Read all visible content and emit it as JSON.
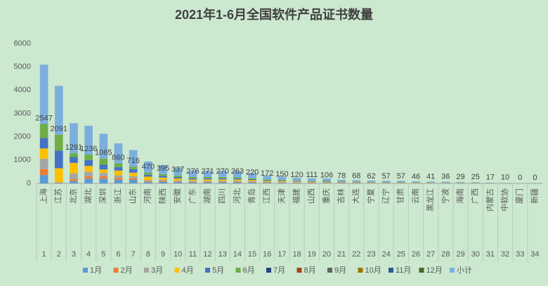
{
  "chart_data": {
    "type": "stacked_bar",
    "title": "2021年1-6月全国软件产品证书数量",
    "categories": [
      "上海",
      "江苏",
      "北京",
      "湖北",
      "深圳",
      "浙江",
      "山东",
      "河南",
      "陕西",
      "安徽",
      "广东",
      "湖南",
      "四川",
      "河北",
      "青岛",
      "江西",
      "天津",
      "福建",
      "山西",
      "重庆",
      "吉林",
      "大连",
      "宁夏",
      "辽宁",
      "甘肃",
      "云南",
      "黑龙江",
      "宁波",
      "海南",
      "广西",
      "内蒙古",
      "中软协",
      "厦门",
      "新疆"
    ],
    "category_numbers": [
      "1",
      "2",
      "3",
      "4",
      "5",
      "6",
      "7",
      "8",
      "9",
      "10",
      "11",
      "12",
      "13",
      "14",
      "15",
      "16",
      "17",
      "18",
      "19",
      "20",
      "21",
      "22",
      "23",
      "24",
      "25",
      "26",
      "27",
      "28",
      "29",
      "30",
      "31",
      "32",
      "33",
      "34"
    ],
    "ylim": [
      0,
      6000
    ],
    "yticks": [
      0,
      1000,
      2000,
      3000,
      4000,
      5000,
      6000
    ],
    "grid": false,
    "legend": "bottom",
    "series": [
      {
        "name": "1月",
        "color": "#5b9bd5",
        "values": [
          360,
          20,
          100,
          200,
          200,
          150,
          150,
          50,
          60,
          50,
          40,
          40,
          40,
          40,
          30,
          20,
          20,
          15,
          15,
          15,
          10,
          10,
          10,
          8,
          8,
          6,
          6,
          5,
          4,
          4,
          2,
          1,
          0,
          0
        ]
      },
      {
        "name": "2月",
        "color": "#ed7d31",
        "values": [
          250,
          10,
          80,
          100,
          100,
          80,
          60,
          30,
          30,
          30,
          20,
          20,
          20,
          20,
          20,
          10,
          10,
          10,
          10,
          10,
          5,
          5,
          5,
          5,
          5,
          4,
          3,
          3,
          2,
          2,
          1,
          1,
          0,
          0
        ]
      },
      {
        "name": "3月",
        "color": "#a5a5a5",
        "values": [
          450,
          20,
          250,
          200,
          150,
          120,
          100,
          60,
          60,
          50,
          50,
          50,
          50,
          50,
          40,
          30,
          30,
          25,
          20,
          20,
          15,
          15,
          10,
          10,
          10,
          8,
          8,
          7,
          6,
          5,
          4,
          2,
          0,
          0
        ]
      },
      {
        "name": "4月",
        "color": "#ffc000",
        "values": [
          440,
          600,
          450,
          250,
          150,
          200,
          150,
          150,
          100,
          80,
          60,
          60,
          60,
          60,
          50,
          40,
          40,
          30,
          30,
          25,
          20,
          15,
          15,
          14,
          14,
          12,
          10,
          9,
          7,
          6,
          4,
          3,
          0,
          0
        ]
      },
      {
        "name": "5月",
        "color": "#4472c4",
        "values": [
          450,
          760,
          250,
          250,
          200,
          150,
          150,
          80,
          70,
          60,
          50,
          50,
          50,
          50,
          40,
          30,
          25,
          20,
          20,
          20,
          15,
          12,
          12,
          10,
          10,
          8,
          7,
          6,
          5,
          4,
          3,
          2,
          0,
          0
        ]
      },
      {
        "name": "6月",
        "color": "#70ad47",
        "values": [
          597,
          681,
          161,
          236,
          265,
          160,
          106,
          100,
          75,
          67,
          56,
          51,
          50,
          43,
          40,
          42,
          25,
          20,
          16,
          16,
          13,
          11,
          10,
          10,
          10,
          8,
          7,
          6,
          5,
          4,
          3,
          1,
          0,
          0
        ]
      },
      {
        "name": "7月",
        "color": "#264478",
        "values": [
          0,
          0,
          0,
          0,
          0,
          0,
          0,
          0,
          0,
          0,
          0,
          0,
          0,
          0,
          0,
          0,
          0,
          0,
          0,
          0,
          0,
          0,
          0,
          0,
          0,
          0,
          0,
          0,
          0,
          0,
          0,
          0,
          0,
          0
        ]
      },
      {
        "name": "8月",
        "color": "#9e480e",
        "values": [
          0,
          0,
          0,
          0,
          0,
          0,
          0,
          0,
          0,
          0,
          0,
          0,
          0,
          0,
          0,
          0,
          0,
          0,
          0,
          0,
          0,
          0,
          0,
          0,
          0,
          0,
          0,
          0,
          0,
          0,
          0,
          0,
          0,
          0
        ]
      },
      {
        "name": "9月",
        "color": "#636363",
        "values": [
          0,
          0,
          0,
          0,
          0,
          0,
          0,
          0,
          0,
          0,
          0,
          0,
          0,
          0,
          0,
          0,
          0,
          0,
          0,
          0,
          0,
          0,
          0,
          0,
          0,
          0,
          0,
          0,
          0,
          0,
          0,
          0,
          0,
          0
        ]
      },
      {
        "name": "10月",
        "color": "#997300",
        "values": [
          0,
          0,
          0,
          0,
          0,
          0,
          0,
          0,
          0,
          0,
          0,
          0,
          0,
          0,
          0,
          0,
          0,
          0,
          0,
          0,
          0,
          0,
          0,
          0,
          0,
          0,
          0,
          0,
          0,
          0,
          0,
          0,
          0,
          0
        ]
      },
      {
        "name": "11月",
        "color": "#255e91",
        "values": [
          0,
          0,
          0,
          0,
          0,
          0,
          0,
          0,
          0,
          0,
          0,
          0,
          0,
          0,
          0,
          0,
          0,
          0,
          0,
          0,
          0,
          0,
          0,
          0,
          0,
          0,
          0,
          0,
          0,
          0,
          0,
          0,
          0,
          0
        ]
      },
      {
        "name": "12月",
        "color": "#43682b",
        "values": [
          0,
          0,
          0,
          0,
          0,
          0,
          0,
          0,
          0,
          0,
          0,
          0,
          0,
          0,
          0,
          0,
          0,
          0,
          0,
          0,
          0,
          0,
          0,
          0,
          0,
          0,
          0,
          0,
          0,
          0,
          0,
          0,
          0,
          0
        ]
      },
      {
        "name": "小计",
        "color": "#7cafdd",
        "labels": true,
        "values": [
          2547,
          2091,
          1291,
          1236,
          1065,
          860,
          716,
          470,
          395,
          337,
          276,
          271,
          270,
          263,
          220,
          172,
          150,
          120,
          111,
          106,
          78,
          68,
          62,
          57,
          57,
          46,
          41,
          36,
          29,
          25,
          17,
          10,
          0,
          0
        ]
      }
    ]
  }
}
